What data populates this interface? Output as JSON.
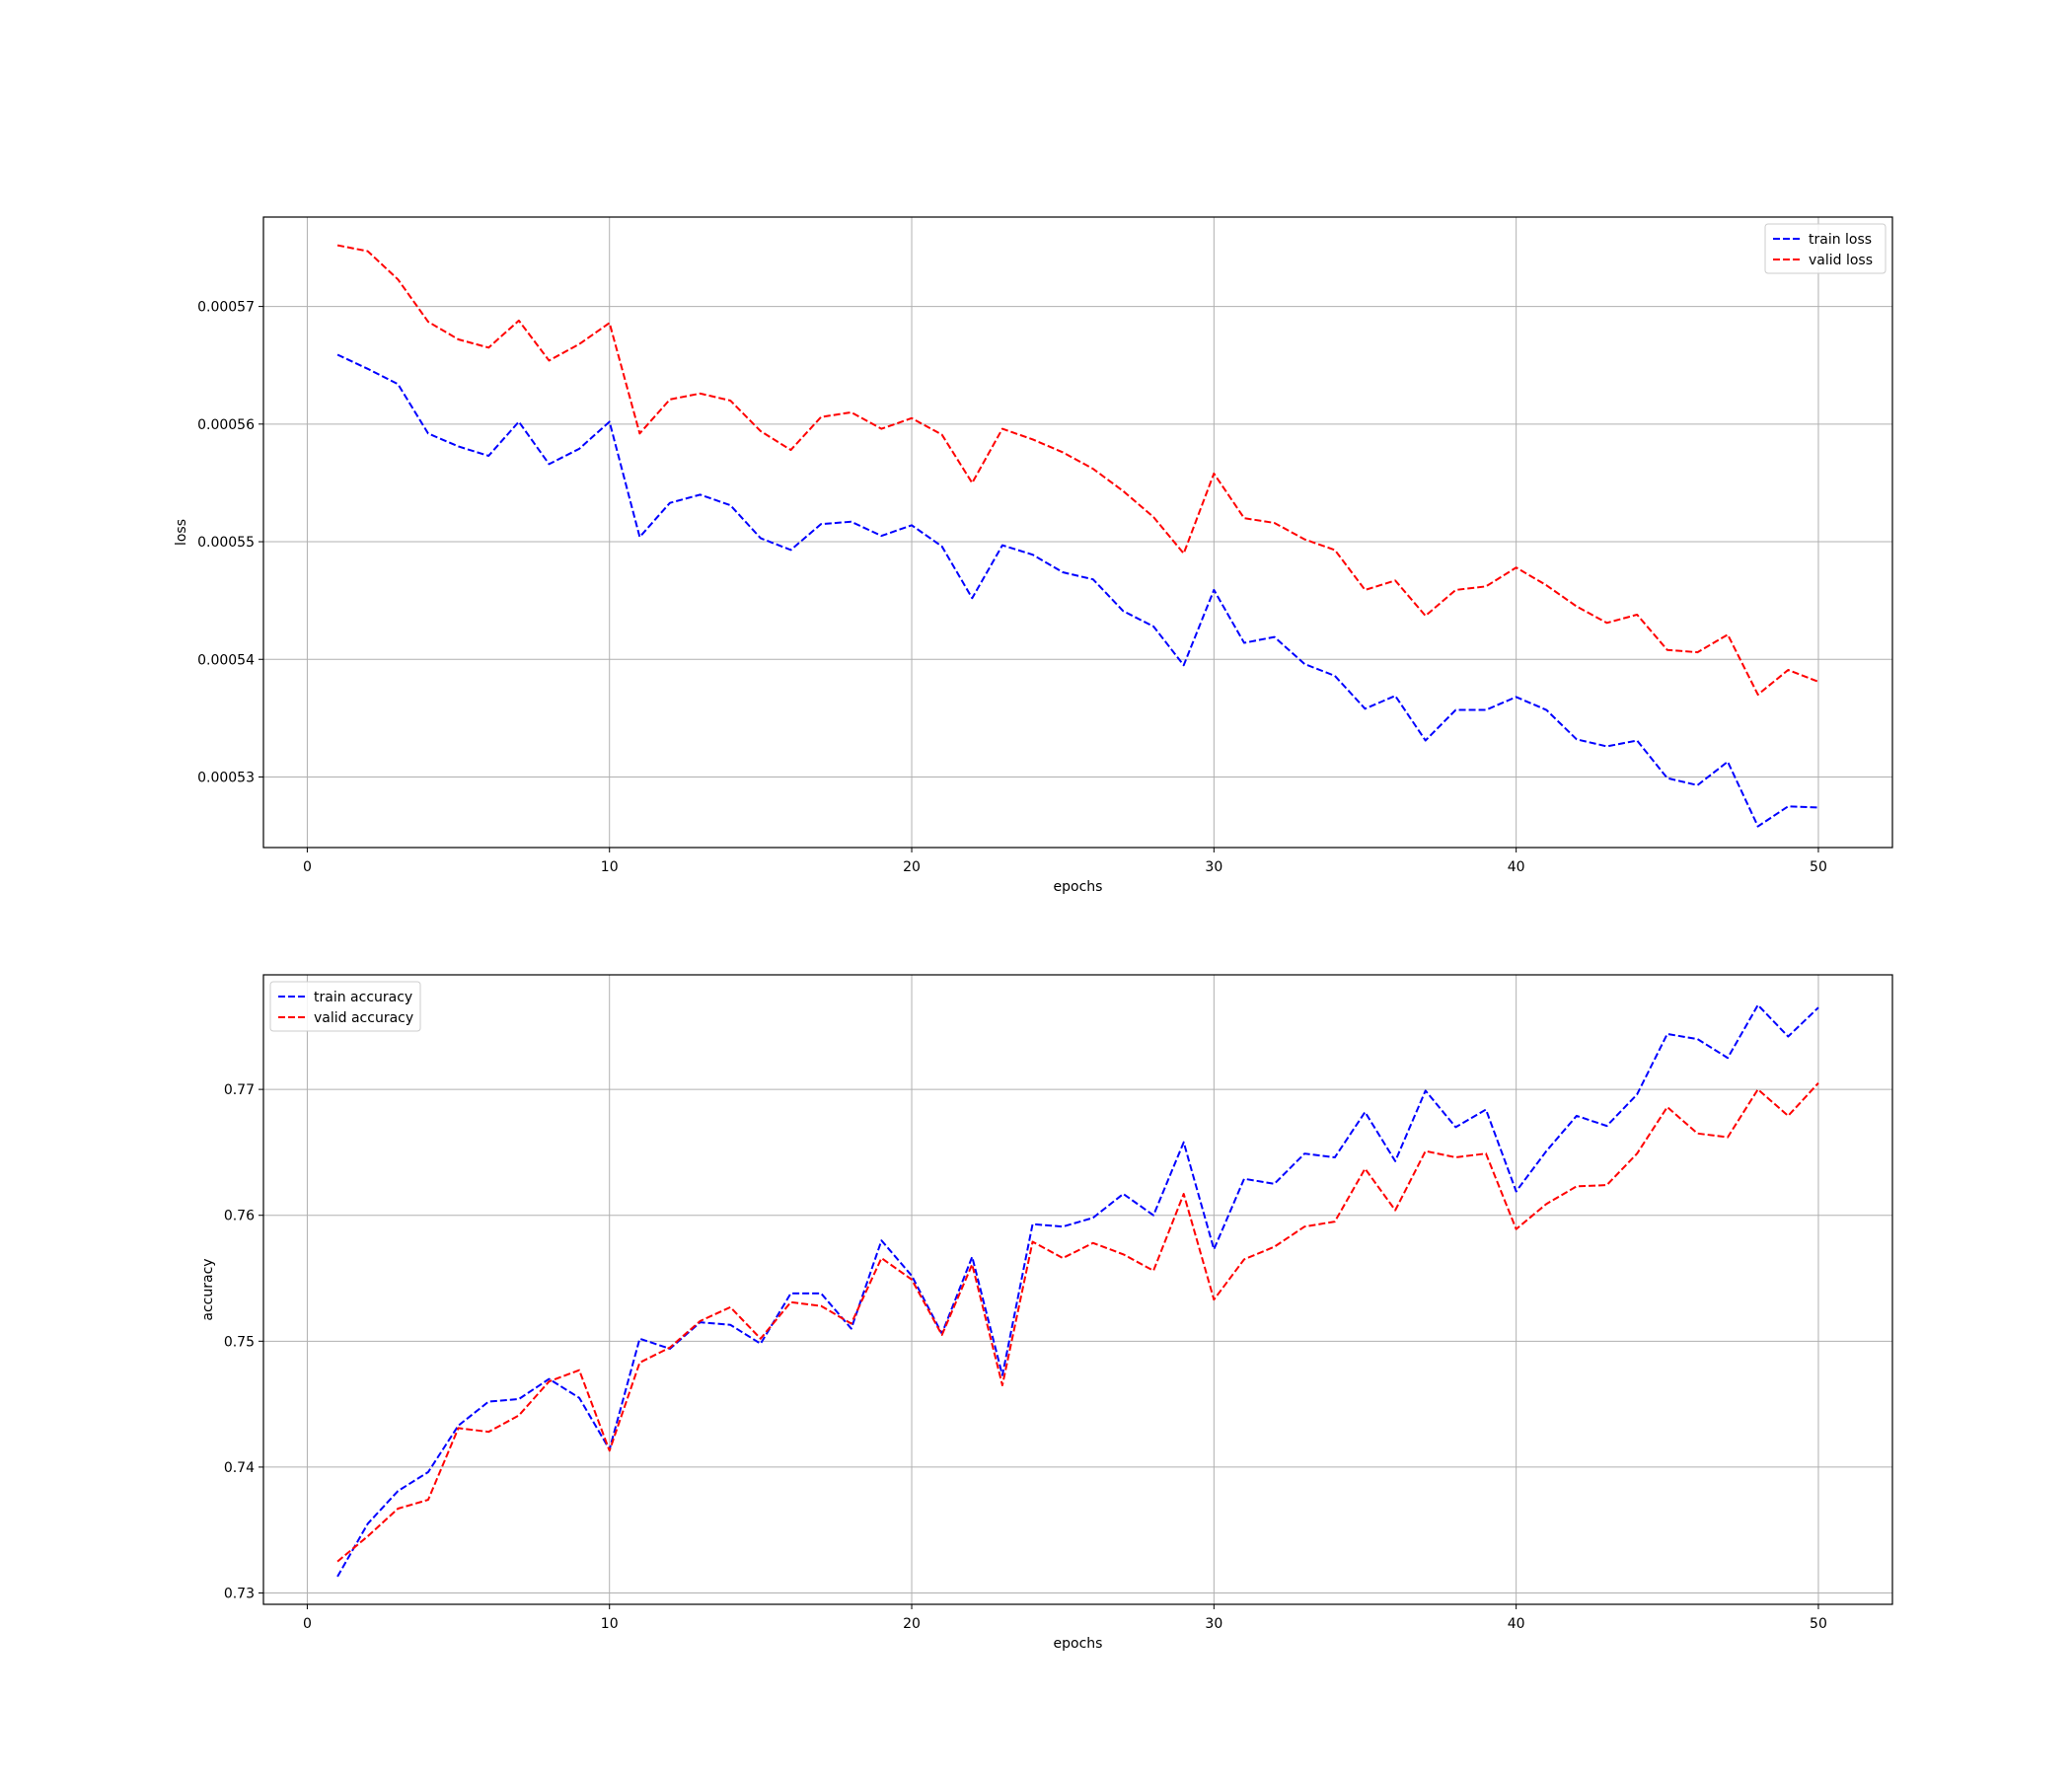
{
  "chart_data": [
    {
      "type": "line",
      "title": "",
      "xlabel": "epochs",
      "ylabel": "loss",
      "xlim": [
        -1.45,
        52.45
      ],
      "ylim": [
        0.000524,
        0.0005776
      ],
      "xticks": [
        0,
        10,
        20,
        30,
        40,
        50
      ],
      "xtick_labels": [
        "0",
        "10",
        "20",
        "30",
        "40",
        "50"
      ],
      "yticks": [
        0.00053,
        0.00054,
        0.00055,
        0.00056,
        0.00057
      ],
      "ytick_labels": [
        "0.00053",
        "0.00054",
        "0.00055",
        "0.00056",
        "0.00057"
      ],
      "grid": true,
      "legend_position": "upper right",
      "x": [
        1,
        2,
        3,
        4,
        5,
        6,
        7,
        8,
        9,
        10,
        11,
        12,
        13,
        14,
        15,
        16,
        17,
        18,
        19,
        20,
        21,
        22,
        23,
        24,
        25,
        26,
        27,
        28,
        29,
        30,
        31,
        32,
        33,
        34,
        35,
        36,
        37,
        38,
        39,
        40,
        41,
        42,
        43,
        44,
        45,
        46,
        47,
        48,
        49,
        50
      ],
      "series": [
        {
          "name": "train loss",
          "color": "#0000ff",
          "linestyle": "dashed",
          "values": [
            0.0005659,
            0.0005647,
            0.0005634,
            0.0005592,
            0.0005581,
            0.0005573,
            0.0005602,
            0.0005566,
            0.0005579,
            0.0005602,
            0.0005504,
            0.0005533,
            0.000554,
            0.0005531,
            0.0005503,
            0.0005493,
            0.0005515,
            0.0005517,
            0.0005505,
            0.0005514,
            0.0005496,
            0.0005452,
            0.0005497,
            0.0005489,
            0.0005474,
            0.0005468,
            0.0005441,
            0.0005428,
            0.0005395,
            0.0005459,
            0.0005414,
            0.0005419,
            0.0005396,
            0.0005386,
            0.0005358,
            0.0005369,
            0.0005331,
            0.0005357,
            0.0005357,
            0.0005368,
            0.0005357,
            0.0005332,
            0.0005326,
            0.0005331,
            0.0005299,
            0.0005293,
            0.0005313,
            0.0005258,
            0.0005275,
            0.0005274
          ]
        },
        {
          "name": "valid loss",
          "color": "#ff0000",
          "linestyle": "dashed",
          "values": [
            0.0005752,
            0.0005747,
            0.0005723,
            0.0005687,
            0.0005672,
            0.0005665,
            0.0005688,
            0.0005654,
            0.0005668,
            0.0005686,
            0.0005592,
            0.0005621,
            0.0005626,
            0.000562,
            0.0005594,
            0.0005578,
            0.0005606,
            0.000561,
            0.0005596,
            0.0005605,
            0.0005591,
            0.000555,
            0.0005596,
            0.0005587,
            0.0005576,
            0.0005562,
            0.0005543,
            0.0005521,
            0.000549,
            0.0005558,
            0.000552,
            0.0005516,
            0.0005502,
            0.0005493,
            0.0005459,
            0.0005467,
            0.0005437,
            0.0005459,
            0.0005462,
            0.0005478,
            0.0005463,
            0.0005445,
            0.0005431,
            0.0005438,
            0.0005408,
            0.0005406,
            0.0005421,
            0.000537,
            0.0005391,
            0.0005381
          ]
        }
      ]
    },
    {
      "type": "line",
      "title": "",
      "xlabel": "epochs",
      "ylabel": "accuracy",
      "xlim": [
        -1.45,
        52.45
      ],
      "ylim": [
        0.7291,
        0.7791
      ],
      "xticks": [
        0,
        10,
        20,
        30,
        40,
        50
      ],
      "xtick_labels": [
        "0",
        "10",
        "20",
        "30",
        "40",
        "50"
      ],
      "yticks": [
        0.73,
        0.74,
        0.75,
        0.76,
        0.77
      ],
      "ytick_labels": [
        "0.73",
        "0.74",
        "0.75",
        "0.76",
        "0.77"
      ],
      "grid": true,
      "legend_position": "upper left",
      "x": [
        1,
        2,
        3,
        4,
        5,
        6,
        7,
        8,
        9,
        10,
        11,
        12,
        13,
        14,
        15,
        16,
        17,
        18,
        19,
        20,
        21,
        22,
        23,
        24,
        25,
        26,
        27,
        28,
        29,
        30,
        31,
        32,
        33,
        34,
        35,
        36,
        37,
        38,
        39,
        40,
        41,
        42,
        43,
        44,
        45,
        46,
        47,
        48,
        49,
        50
      ],
      "series": [
        {
          "name": "train accuracy",
          "color": "#0000ff",
          "linestyle": "dashed",
          "values": [
            0.7313,
            0.7355,
            0.7381,
            0.7396,
            0.7433,
            0.7452,
            0.7454,
            0.747,
            0.7455,
            0.7414,
            0.7502,
            0.7494,
            0.7515,
            0.7513,
            0.7498,
            0.7538,
            0.7538,
            0.751,
            0.758,
            0.7552,
            0.7506,
            0.7567,
            0.7473,
            0.7593,
            0.7591,
            0.7598,
            0.7617,
            0.76,
            0.7658,
            0.7573,
            0.7629,
            0.7625,
            0.7649,
            0.7646,
            0.7682,
            0.7643,
            0.7699,
            0.767,
            0.7684,
            0.7619,
            0.7651,
            0.7679,
            0.7671,
            0.7696,
            0.7744,
            0.774,
            0.7725,
            0.7767,
            0.7742,
            0.7765
          ]
        },
        {
          "name": "valid accuracy",
          "color": "#ff0000",
          "linestyle": "dashed",
          "values": [
            0.7325,
            0.7345,
            0.7367,
            0.7374,
            0.7431,
            0.7428,
            0.7441,
            0.7468,
            0.7477,
            0.7413,
            0.7483,
            0.7495,
            0.7516,
            0.7527,
            0.7502,
            0.7531,
            0.7528,
            0.7514,
            0.7566,
            0.7549,
            0.7505,
            0.7561,
            0.7465,
            0.7579,
            0.7566,
            0.7578,
            0.7569,
            0.7556,
            0.7617,
            0.7533,
            0.7565,
            0.7575,
            0.7591,
            0.7595,
            0.7637,
            0.7604,
            0.7651,
            0.7646,
            0.7649,
            0.7589,
            0.7609,
            0.7623,
            0.7624,
            0.7649,
            0.7686,
            0.7665,
            0.7662,
            0.77,
            0.7679,
            0.7705
          ]
        }
      ]
    }
  ]
}
